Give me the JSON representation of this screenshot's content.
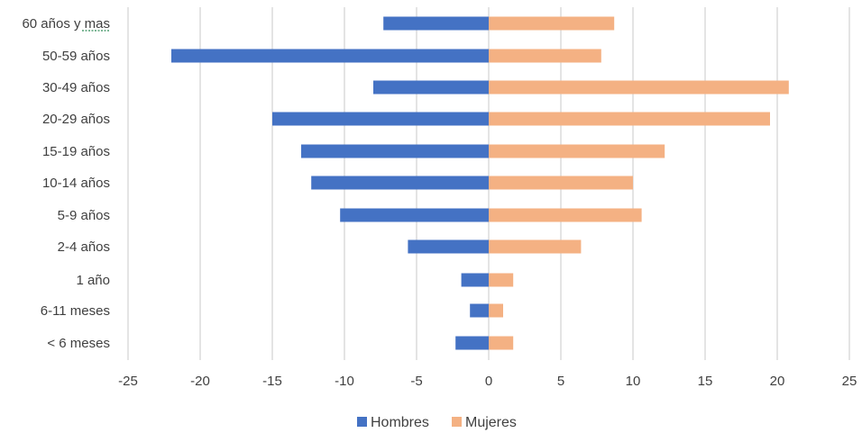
{
  "chart_data": {
    "type": "bar",
    "orientation": "horizontal",
    "categories": [
      "60 años y mas",
      "50-59 años",
      "30-49 años",
      "20-29 años",
      "15-19 años",
      "10-14 años",
      "5-9 años",
      "2-4 años",
      "1 año",
      "6-11 meses",
      "< 6 meses"
    ],
    "series": [
      {
        "name": "Hombres",
        "color": "#4472C4",
        "values": [
          -7.3,
          -22,
          -8,
          -15,
          -13,
          -12.3,
          -10.3,
          -5.6,
          -1.9,
          -1.3,
          -2.3
        ]
      },
      {
        "name": "Mujeres",
        "color": "#F4B183",
        "values": [
          8.7,
          7.8,
          20.8,
          19.5,
          12.2,
          10,
          10.6,
          6.4,
          1.7,
          1,
          1.7
        ]
      }
    ],
    "xlim": [
      -25,
      25
    ],
    "xticks": [
      "-25",
      "-20",
      "-15",
      "-10",
      "-5",
      "0",
      "5",
      "10",
      "15",
      "20",
      "25"
    ],
    "grid": "vertical",
    "legend_position": "bottom",
    "title": "",
    "xlabel": "",
    "ylabel": ""
  }
}
